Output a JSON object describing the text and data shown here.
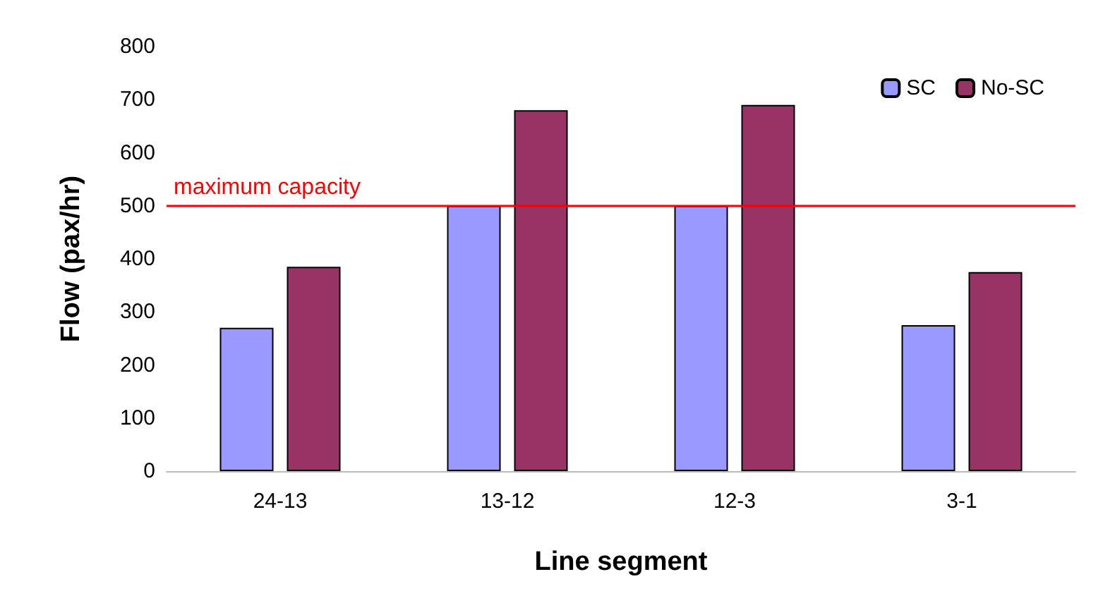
{
  "chart_data": {
    "type": "bar",
    "xlabel": "Line segment",
    "ylabel": "Flow (pax/hr)",
    "categories": [
      "24-13",
      "13-12",
      "12-3",
      "3-1"
    ],
    "series": [
      {
        "name": "SC",
        "color": "#9999ff",
        "values": [
          270,
          500,
          500,
          275
        ]
      },
      {
        "name": "No-SC",
        "color": "#993366",
        "values": [
          385,
          680,
          690,
          375
        ]
      }
    ],
    "ylim": [
      0,
      800
    ],
    "yticks": [
      0,
      100,
      200,
      300,
      400,
      500,
      600,
      700,
      800
    ],
    "ref_lines": [
      {
        "axis": "y",
        "value": 500,
        "label": "maximum capacity",
        "color": "#ff0000"
      }
    ],
    "legend": "top right",
    "grid": false
  }
}
